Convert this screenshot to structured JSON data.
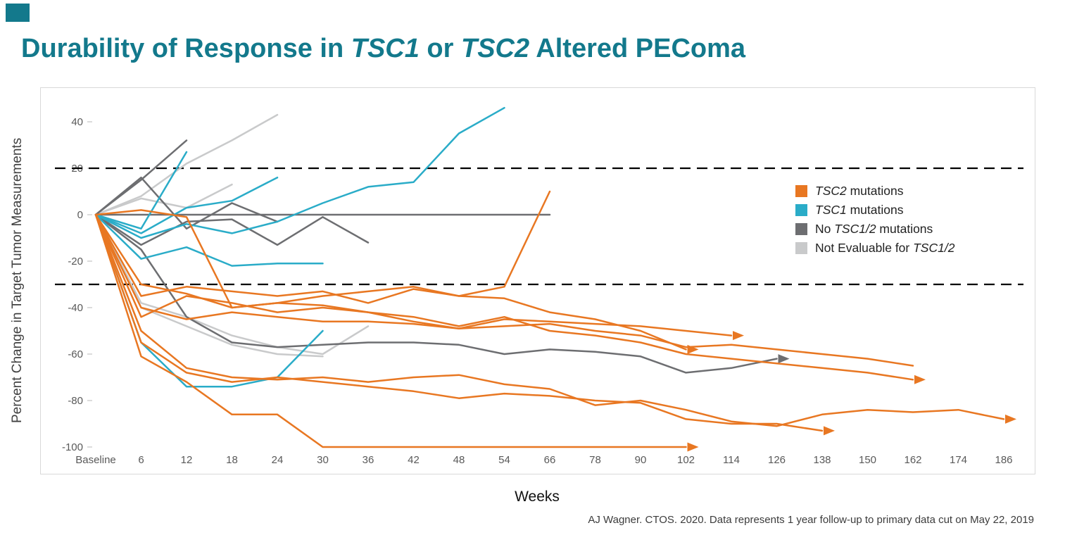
{
  "slide": {
    "title_parts": {
      "p1": "Durability of Response in ",
      "p2": "TSC1",
      "p3": " or ",
      "p4": "TSC2",
      "p5": " Altered PEComa"
    },
    "footer": "AJ Wagner. CTOS. 2020. Data represents 1 year follow-up to primary data cut on May 22, 2019"
  },
  "colors": {
    "title": "#13798C",
    "accent": "#13798C",
    "tsc2": "#E87722",
    "tsc1": "#2AACC8",
    "no_mut": "#6D6E71",
    "not_eval": "#C9CACB",
    "reference": "#000000",
    "axis_text": "#595959"
  },
  "legend": {
    "items": [
      {
        "prefix": "",
        "italic": "TSC2",
        "suffix": " mutations",
        "group": "tsc2"
      },
      {
        "prefix": "",
        "italic": "TSC1",
        "suffix": " mutations",
        "group": "tsc1"
      },
      {
        "prefix": "No ",
        "italic": "TSC1/2",
        "suffix": " mutations",
        "group": "no_mut"
      },
      {
        "prefix": "Not Evaluable for ",
        "italic": "TSC1/2",
        "suffix": "",
        "group": "not_eval"
      }
    ]
  },
  "chart_data": {
    "type": "line",
    "title": "Durability of Response in TSC1 or TSC2 Altered PEComa",
    "xlabel": "Weeks",
    "ylabel": "Percent Change in Target Tumor Measurements",
    "x_axis": {
      "tick_labels": [
        "Baseline",
        "6",
        "12",
        "18",
        "24",
        "30",
        "36",
        "42",
        "48",
        "54",
        "66",
        "78",
        "90",
        "102",
        "114",
        "126",
        "138",
        "150",
        "162",
        "174",
        "186"
      ],
      "weeks": [
        0,
        6,
        12,
        18,
        24,
        30,
        36,
        42,
        48,
        54,
        66,
        78,
        90,
        102,
        114,
        126,
        138,
        150,
        162,
        174,
        186
      ]
    },
    "ylim": [
      -105,
      50
    ],
    "y_ticks": [
      40,
      20,
      0,
      -20,
      -40,
      -60,
      -80,
      -100
    ],
    "grid": false,
    "legend_position": "inside-right",
    "reference_lines": [
      {
        "y": 20,
        "style": "dashed"
      },
      {
        "y": -30,
        "style": "dashed"
      }
    ],
    "series": [
      {
        "id": "not-evaluable-1",
        "group": "not_eval",
        "arrow": false,
        "points": [
          [
            0,
            0
          ],
          [
            6,
            8
          ],
          [
            12,
            22
          ],
          [
            18,
            32
          ],
          [
            24,
            43
          ]
        ]
      },
      {
        "id": "not-evaluable-2",
        "group": "not_eval",
        "arrow": false,
        "points": [
          [
            0,
            0
          ],
          [
            6,
            7
          ],
          [
            12,
            3
          ],
          [
            18,
            13
          ]
        ]
      },
      {
        "id": "not-evaluable-3",
        "group": "not_eval",
        "arrow": false,
        "points": [
          [
            0,
            0
          ],
          [
            6,
            -38
          ],
          [
            12,
            -44
          ],
          [
            18,
            -52
          ],
          [
            24,
            -57
          ],
          [
            30,
            -60
          ],
          [
            36,
            -48
          ]
        ]
      },
      {
        "id": "not-evaluable-4",
        "group": "not_eval",
        "arrow": false,
        "points": [
          [
            0,
            0
          ],
          [
            6,
            -40
          ],
          [
            12,
            -48
          ],
          [
            18,
            -56
          ],
          [
            24,
            -60
          ],
          [
            30,
            -61
          ]
        ]
      },
      {
        "id": "no-mutation-1",
        "group": "no_mut",
        "arrow": false,
        "points": [
          [
            0,
            0
          ],
          [
            66,
            0
          ]
        ]
      },
      {
        "id": "no-mutation-2",
        "group": "no_mut",
        "arrow": false,
        "points": [
          [
            0,
            0
          ],
          [
            6,
            15
          ],
          [
            12,
            32
          ]
        ]
      },
      {
        "id": "no-mutation-3",
        "group": "no_mut",
        "arrow": false,
        "points": [
          [
            0,
            0
          ],
          [
            6,
            -13
          ],
          [
            12,
            -3
          ],
          [
            18,
            -2
          ],
          [
            24,
            -13
          ],
          [
            30,
            -1
          ],
          [
            36,
            -12
          ]
        ]
      },
      {
        "id": "no-mutation-4",
        "group": "no_mut",
        "arrow": true,
        "points": [
          [
            0,
            0
          ],
          [
            6,
            -15
          ],
          [
            12,
            -44
          ],
          [
            18,
            -55
          ],
          [
            24,
            -57
          ],
          [
            30,
            -56
          ],
          [
            36,
            -55
          ],
          [
            42,
            -55
          ],
          [
            48,
            -56
          ],
          [
            54,
            -60
          ],
          [
            66,
            -58
          ],
          [
            78,
            -59
          ],
          [
            90,
            -61
          ],
          [
            102,
            -68
          ],
          [
            114,
            -66
          ],
          [
            126,
            -62
          ]
        ]
      },
      {
        "id": "no-mutation-5",
        "group": "no_mut",
        "arrow": false,
        "points": [
          [
            0,
            0
          ],
          [
            6,
            16
          ],
          [
            12,
            -6
          ],
          [
            18,
            5
          ],
          [
            24,
            -3
          ]
        ]
      },
      {
        "id": "tsc1-1",
        "group": "tsc1",
        "arrow": false,
        "points": [
          [
            0,
            0
          ],
          [
            6,
            -10
          ],
          [
            12,
            -4
          ],
          [
            18,
            -8
          ],
          [
            24,
            -3
          ],
          [
            30,
            5
          ],
          [
            36,
            12
          ],
          [
            42,
            14
          ],
          [
            48,
            35
          ],
          [
            54,
            46
          ]
        ]
      },
      {
        "id": "tsc1-2",
        "group": "tsc1",
        "arrow": false,
        "points": [
          [
            0,
            0
          ],
          [
            6,
            -6
          ],
          [
            12,
            27
          ]
        ]
      },
      {
        "id": "tsc1-3",
        "group": "tsc1",
        "arrow": false,
        "points": [
          [
            0,
            0
          ],
          [
            6,
            -8
          ],
          [
            12,
            3
          ],
          [
            18,
            6
          ],
          [
            24,
            16
          ]
        ]
      },
      {
        "id": "tsc1-4",
        "group": "tsc1",
        "arrow": false,
        "points": [
          [
            0,
            0
          ],
          [
            6,
            -19
          ],
          [
            12,
            -14
          ],
          [
            18,
            -22
          ],
          [
            24,
            -21
          ],
          [
            30,
            -21
          ]
        ]
      },
      {
        "id": "tsc1-5",
        "group": "tsc1",
        "arrow": false,
        "points": [
          [
            0,
            0
          ],
          [
            6,
            -55
          ],
          [
            12,
            -74
          ],
          [
            18,
            -74
          ],
          [
            24,
            -70
          ],
          [
            30,
            -50
          ]
        ]
      },
      {
        "id": "tsc2-1",
        "group": "tsc2",
        "arrow": true,
        "points": [
          [
            0,
            0
          ],
          [
            6,
            -61
          ],
          [
            12,
            -72
          ],
          [
            18,
            -86
          ],
          [
            24,
            -86
          ],
          [
            30,
            -100
          ],
          [
            102,
            -100
          ]
        ]
      },
      {
        "id": "tsc2-2",
        "group": "tsc2",
        "arrow": true,
        "points": [
          [
            0,
            0
          ],
          [
            6,
            -50
          ],
          [
            12,
            -66
          ],
          [
            18,
            -70
          ],
          [
            24,
            -71
          ],
          [
            30,
            -70
          ],
          [
            36,
            -72
          ],
          [
            42,
            -70
          ],
          [
            48,
            -69
          ],
          [
            54,
            -73
          ],
          [
            66,
            -75
          ],
          [
            78,
            -82
          ],
          [
            90,
            -80
          ],
          [
            102,
            -84
          ],
          [
            114,
            -89
          ],
          [
            126,
            -91
          ],
          [
            138,
            -86
          ],
          [
            150,
            -84
          ],
          [
            162,
            -85
          ],
          [
            174,
            -84
          ],
          [
            186,
            -88
          ]
        ]
      },
      {
        "id": "tsc2-3",
        "group": "tsc2",
        "arrow": true,
        "points": [
          [
            0,
            0
          ],
          [
            6,
            -55
          ],
          [
            12,
            -68
          ],
          [
            18,
            -72
          ],
          [
            24,
            -70
          ],
          [
            30,
            -72
          ],
          [
            36,
            -74
          ],
          [
            42,
            -76
          ],
          [
            48,
            -79
          ],
          [
            54,
            -77
          ],
          [
            66,
            -78
          ],
          [
            78,
            -80
          ],
          [
            90,
            -81
          ],
          [
            102,
            -88
          ],
          [
            114,
            -90
          ],
          [
            126,
            -90
          ],
          [
            138,
            -93
          ]
        ]
      },
      {
        "id": "tsc2-4",
        "group": "tsc2",
        "arrow": true,
        "points": [
          [
            0,
            0
          ],
          [
            6,
            -44
          ],
          [
            12,
            -35
          ],
          [
            18,
            -38
          ],
          [
            24,
            -42
          ],
          [
            30,
            -40
          ],
          [
            36,
            -42
          ],
          [
            42,
            -44
          ],
          [
            48,
            -48
          ],
          [
            54,
            -44
          ],
          [
            66,
            -50
          ],
          [
            78,
            -52
          ],
          [
            90,
            -55
          ],
          [
            102,
            -60
          ],
          [
            114,
            -62
          ],
          [
            126,
            -64
          ],
          [
            138,
            -66
          ],
          [
            150,
            -68
          ],
          [
            162,
            -71
          ]
        ]
      },
      {
        "id": "tsc2-5",
        "group": "tsc2",
        "arrow": false,
        "points": [
          [
            0,
            0
          ],
          [
            6,
            -40
          ],
          [
            12,
            -45
          ],
          [
            18,
            -42
          ],
          [
            24,
            -44
          ],
          [
            30,
            -46
          ],
          [
            36,
            -46
          ],
          [
            42,
            -47
          ],
          [
            48,
            -49
          ],
          [
            54,
            -48
          ],
          [
            66,
            -47
          ],
          [
            78,
            -50
          ],
          [
            90,
            -52
          ],
          [
            102,
            -57
          ],
          [
            114,
            -56
          ],
          [
            126,
            -58
          ],
          [
            138,
            -60
          ],
          [
            150,
            -62
          ],
          [
            162,
            -65
          ]
        ]
      },
      {
        "id": "tsc2-6",
        "group": "tsc2",
        "arrow": true,
        "points": [
          [
            0,
            0
          ],
          [
            6,
            -30
          ],
          [
            12,
            -34
          ],
          [
            18,
            -40
          ],
          [
            24,
            -38
          ],
          [
            30,
            -39
          ],
          [
            36,
            -42
          ],
          [
            42,
            -46
          ],
          [
            48,
            -49
          ],
          [
            54,
            -45
          ],
          [
            66,
            -46
          ],
          [
            78,
            -47
          ],
          [
            90,
            -48
          ],
          [
            102,
            -50
          ],
          [
            114,
            -52
          ]
        ]
      },
      {
        "id": "tsc2-7",
        "group": "tsc2",
        "arrow": true,
        "points": [
          [
            0,
            0
          ],
          [
            6,
            -35
          ],
          [
            12,
            -31
          ],
          [
            18,
            -33
          ],
          [
            24,
            -35
          ],
          [
            30,
            -33
          ],
          [
            36,
            -38
          ],
          [
            42,
            -32
          ],
          [
            48,
            -35
          ],
          [
            54,
            -36
          ],
          [
            66,
            -42
          ],
          [
            78,
            -45
          ],
          [
            90,
            -50
          ],
          [
            102,
            -58
          ]
        ]
      },
      {
        "id": "tsc2-8",
        "group": "tsc2",
        "arrow": false,
        "points": [
          [
            0,
            0
          ],
          [
            6,
            2
          ],
          [
            12,
            -1
          ],
          [
            18,
            -40
          ],
          [
            24,
            -38
          ],
          [
            30,
            -35
          ],
          [
            36,
            -33
          ],
          [
            42,
            -31
          ],
          [
            48,
            -35
          ],
          [
            54,
            -31
          ],
          [
            66,
            10
          ]
        ]
      }
    ]
  }
}
